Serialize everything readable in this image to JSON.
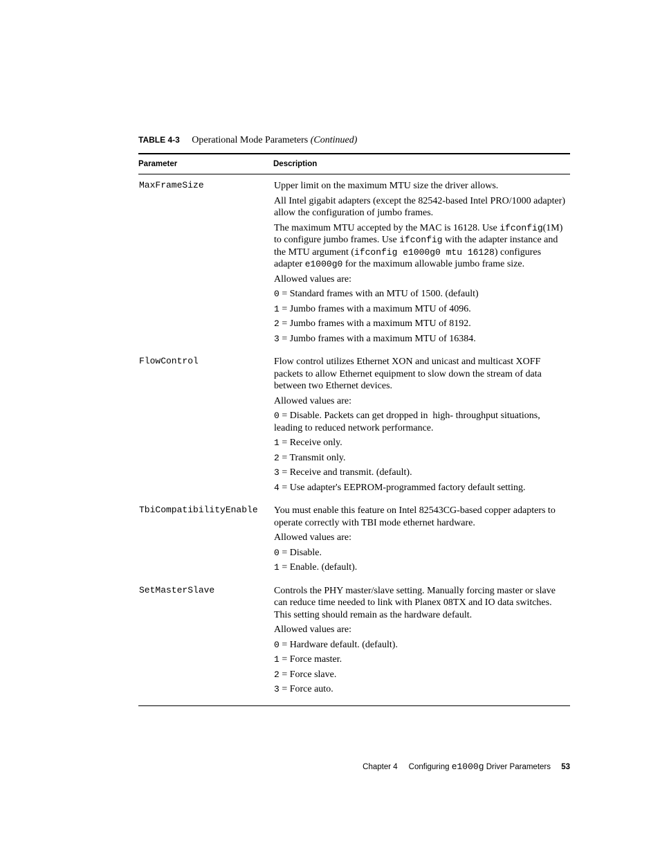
{
  "caption": {
    "label": "TABLE 4-3",
    "title": "Operational Mode Parameters",
    "suffix": "(Continued)"
  },
  "headers": {
    "param": "Parameter",
    "desc": "Description"
  },
  "rows": {
    "r1": {
      "name": "MaxFrameSize",
      "p1": "Upper limit on the maximum MTU size the driver allows.",
      "p2": "All Intel gigabit adapters (except the 82542-based Intel PRO/1000 adapter) allow the configuration of jumbo frames.",
      "p3a": "The maximum MTU accepted by the MAC is 16128. Use ",
      "p3b": "ifconfig",
      "p3c": "(1M) to configure jumbo frames. Use ",
      "p3d": "ifconfig",
      "p3e": " with the adapter instance and the MTU argument (",
      "p3f": "ifconfig e1000g0 mtu 16128",
      "p3g": ") configures adapter ",
      "p3h": "e1000g0",
      "p3i": " for the maximum allowable jumbo frame size.",
      "p4": "Allowed values are:",
      "p5a": "0",
      "p5b": " = Standard frames with an MTU of 1500. (default)",
      "p6a": "1",
      "p6b": " = Jumbo frames with a maximum MTU of 4096.",
      "p7a": "2",
      "p7b": " = Jumbo frames with a maximum MTU of 8192.",
      "p8a": "3",
      "p8b": " = Jumbo frames with a maximum MTU of 16384."
    },
    "r2": {
      "name": "FlowControl",
      "p1": "Flow control utilizes Ethernet XON and unicast and multicast XOFF packets to allow Ethernet equipment to slow down the stream of data between two Ethernet devices.",
      "p2": "Allowed values are:",
      "p3a": "0",
      "p3b": " = Disable. Packets can get dropped in  high- throughput situations, leading to reduced network performance.",
      "p4a": "1",
      "p4b": " = Receive only.",
      "p5a": "2",
      "p5b": " = Transmit only.",
      "p6a": "3",
      "p6b": " = Receive and transmit. (default).",
      "p7a": "4",
      "p7b": " = Use adapter's EEPROM-programmed factory default setting."
    },
    "r3": {
      "name": "TbiCompatibilityEnable",
      "p1": "You must enable this feature on Intel 82543CG-based copper adapters to operate correctly with TBI mode ethernet hardware.",
      "p2": "Allowed values are:",
      "p3a": "0",
      "p3b": " = Disable.",
      "p4a": "1",
      "p4b": " = Enable. (default)."
    },
    "r4": {
      "name": "SetMasterSlave",
      "p1": "Controls the PHY master/slave setting. Manually forcing master or slave can reduce time needed to link with Planex 08TX and IO data switches. This setting should remain as the hardware default.",
      "p2": "Allowed values are:",
      "p3a": "0",
      "p3b": " = Hardware default. (default).",
      "p4a": "1",
      "p4b": " = Force master.",
      "p5a": "2",
      "p5b": " = Force slave.",
      "p6a": "3",
      "p6b": " = Force auto."
    }
  },
  "footer": {
    "chapter": "Chapter 4",
    "title_a": "Configuring ",
    "title_mono": "e1000g",
    "title_b": " Driver Parameters",
    "page": "53"
  }
}
